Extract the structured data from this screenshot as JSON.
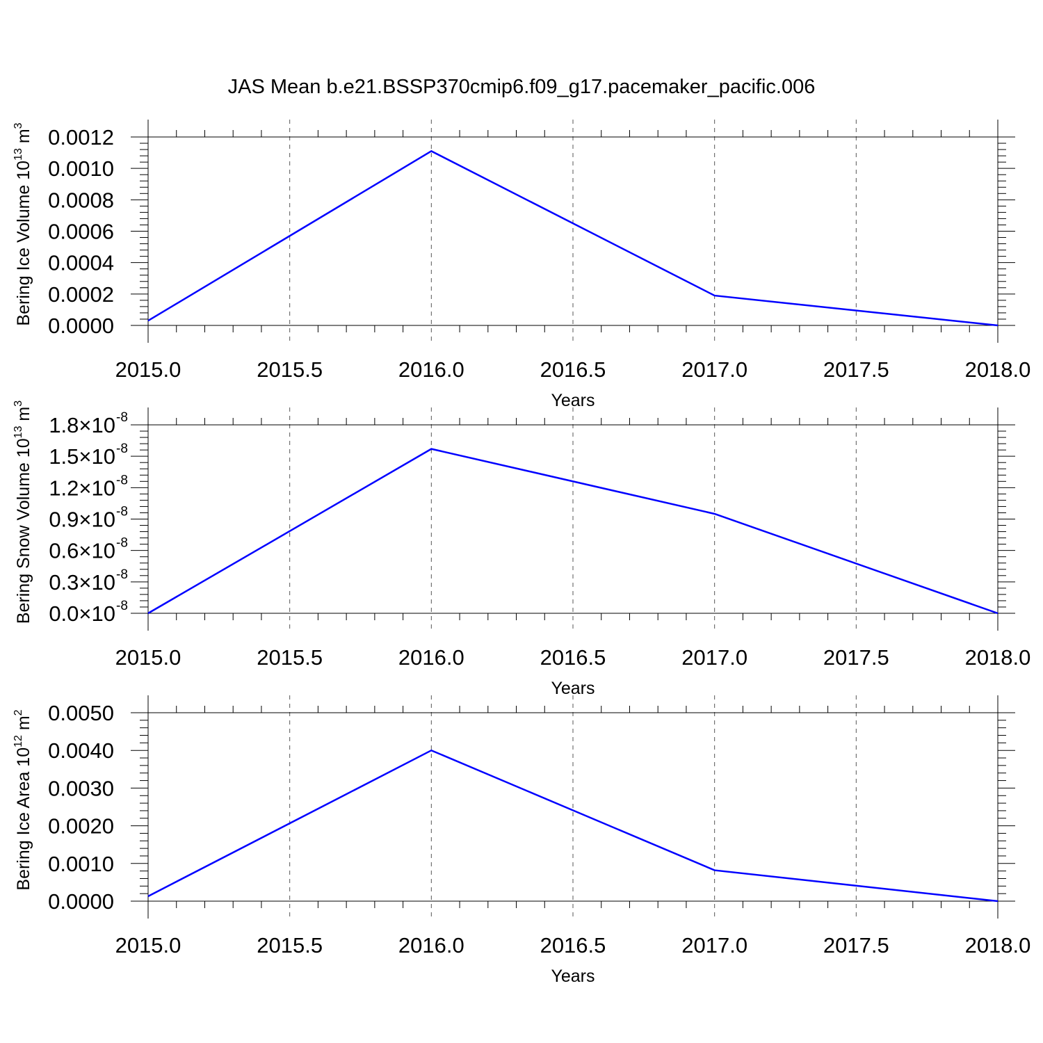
{
  "title": "JAS Mean b.e21.BSSP370cmip6.f09_g17.pacemaker_pacific.006",
  "line_color": "#0000ff",
  "chart_data": [
    {
      "type": "line",
      "title": "",
      "xlabel": "Years",
      "ylabel": "Bering Ice Volume 10",
      "ylabel_exp": "13",
      "ylabel_unit": " m",
      "ylabel_unit_exp": "3",
      "xlim": [
        2015.0,
        2018.0
      ],
      "ylim": [
        0.0,
        0.0012
      ],
      "x_ticks": [
        "2015.0",
        "2015.5",
        "2016.0",
        "2016.5",
        "2017.0",
        "2017.5",
        "2018.0"
      ],
      "y_ticks": [
        "0.0000",
        "0.0002",
        "0.0004",
        "0.0006",
        "0.0008",
        "0.0010",
        "0.0012"
      ],
      "grid": "vertical dashed",
      "x": [
        2015,
        2016,
        2017,
        2018
      ],
      "y": [
        3e-05,
        0.00111,
        0.00019,
        0.0
      ]
    },
    {
      "type": "line",
      "title": "",
      "xlabel": "Years",
      "ylabel": "Bering Snow Volume 10",
      "ylabel_exp": "13",
      "ylabel_unit": " m",
      "ylabel_unit_exp": "3",
      "xlim": [
        2015.0,
        2018.0
      ],
      "ylim": [
        0.0,
        1.8e-08
      ],
      "x_ticks": [
        "2015.0",
        "2015.5",
        "2016.0",
        "2016.5",
        "2017.0",
        "2017.5",
        "2018.0"
      ],
      "y_ticks": [
        "0.0",
        "0.3",
        "0.6",
        "0.9",
        "1.2",
        "1.5",
        "1.8"
      ],
      "y_tick_suffix": "×10",
      "y_tick_exp": "-8",
      "grid": "vertical dashed",
      "x": [
        2015,
        2016,
        2017,
        2018
      ],
      "y": [
        0.0,
        1.57e-08,
        9.5e-09,
        0.0
      ]
    },
    {
      "type": "line",
      "title": "",
      "xlabel": "Years",
      "ylabel": "Bering Ice Area 10",
      "ylabel_exp": "12",
      "ylabel_unit": " m",
      "ylabel_unit_exp": "2",
      "xlim": [
        2015.0,
        2018.0
      ],
      "ylim": [
        0.0,
        0.005
      ],
      "x_ticks": [
        "2015.0",
        "2015.5",
        "2016.0",
        "2016.5",
        "2017.0",
        "2017.5",
        "2018.0"
      ],
      "y_ticks": [
        "0.0000",
        "0.0010",
        "0.0020",
        "0.0030",
        "0.0040",
        "0.0050"
      ],
      "grid": "vertical dashed",
      "x": [
        2015,
        2016,
        2017,
        2018
      ],
      "y": [
        0.00013,
        0.004,
        0.00082,
        0.0
      ]
    }
  ]
}
